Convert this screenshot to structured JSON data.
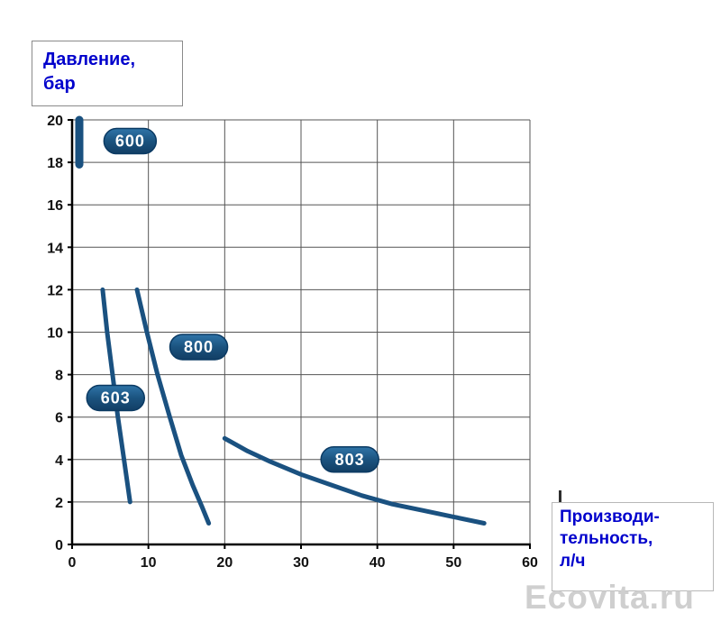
{
  "labels": {
    "y_axis_box": "Давление,\nбар",
    "x_axis_box": "Производи-\nтельность,\nл/ч",
    "watermark": "Ecovita.ru"
  },
  "chart_data": {
    "type": "line",
    "title": "",
    "xlabel": "Производительность, л/ч",
    "ylabel": "Давление, бар",
    "xlim": [
      0,
      60
    ],
    "ylim": [
      0,
      20
    ],
    "xticks": [
      0,
      10,
      20,
      30,
      40,
      50,
      60
    ],
    "yticks": [
      0,
      2,
      4,
      6,
      8,
      10,
      12,
      14,
      16,
      18,
      20
    ],
    "grid": true,
    "legend": "inline-badges",
    "colors": {
      "curve": "#1a5180",
      "badge_stroke": "#0b3a63",
      "grid": "#555555",
      "axis": "#000000",
      "badge_text": "#ffffff",
      "label_blue": "#0000cc",
      "watermark_gray": "#cfcfcf"
    },
    "series": [
      {
        "name": "600",
        "points": [
          [
            0.95,
            20.0
          ],
          [
            0.95,
            17.9
          ]
        ],
        "width": 9,
        "badge_w": 58,
        "label_pos": [
          7.6,
          19.0
        ]
      },
      {
        "name": "603",
        "points": [
          [
            4.0,
            12.0
          ],
          [
            4.6,
            10.0
          ],
          [
            5.3,
            8.0
          ],
          [
            6.0,
            6.0
          ],
          [
            6.8,
            4.0
          ],
          [
            7.6,
            2.0
          ]
        ],
        "width": 5,
        "badge_w": 64,
        "label_pos": [
          5.7,
          6.9
        ]
      },
      {
        "name": "800",
        "points": [
          [
            8.5,
            12.0
          ],
          [
            9.8,
            10.0
          ],
          [
            11.2,
            8.0
          ],
          [
            12.8,
            6.0
          ],
          [
            14.3,
            4.2
          ],
          [
            15.8,
            2.8
          ],
          [
            17.0,
            1.8
          ],
          [
            17.9,
            1.0
          ]
        ],
        "width": 5,
        "badge_w": 64,
        "label_pos": [
          16.6,
          9.3
        ]
      },
      {
        "name": "803",
        "points": [
          [
            20,
            5.0
          ],
          [
            23,
            4.4
          ],
          [
            26,
            3.9
          ],
          [
            30,
            3.3
          ],
          [
            34,
            2.8
          ],
          [
            38,
            2.3
          ],
          [
            42,
            1.9
          ],
          [
            46,
            1.6
          ],
          [
            50,
            1.3
          ],
          [
            54,
            1.0
          ]
        ],
        "width": 5,
        "badge_w": 64,
        "label_pos": [
          36.4,
          4.0
        ]
      }
    ]
  }
}
